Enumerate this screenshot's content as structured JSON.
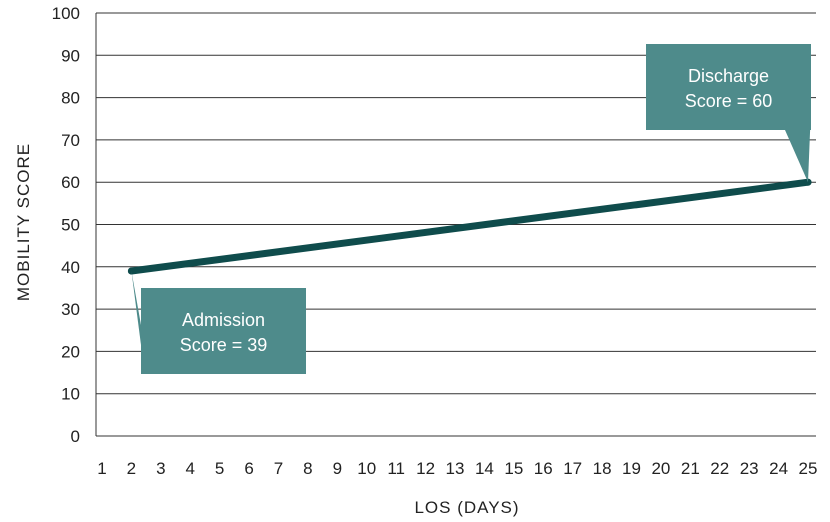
{
  "chart_data": {
    "type": "line",
    "xlabel": "LOS (DAYS)",
    "ylabel": "MOBILITY SCORE",
    "x_ticks": [
      1,
      2,
      3,
      4,
      5,
      6,
      7,
      8,
      9,
      10,
      11,
      12,
      13,
      14,
      15,
      16,
      17,
      18,
      19,
      20,
      21,
      22,
      23,
      24,
      25
    ],
    "y_ticks": [
      0,
      10,
      20,
      30,
      40,
      50,
      60,
      70,
      80,
      90,
      100
    ],
    "ylim": [
      0,
      100
    ],
    "xlim": [
      1,
      25
    ],
    "grid": "horizontal",
    "series": [
      {
        "x": [
          2,
          25
        ],
        "y": [
          39,
          60
        ]
      }
    ],
    "annotations": [
      {
        "lines": [
          "Admission",
          "Score = 39"
        ],
        "x": 2,
        "y": 39
      },
      {
        "lines": [
          "Discharge",
          "Score = 60"
        ],
        "x": 25,
        "y": 60
      }
    ],
    "colors": {
      "line": "#0f4c4c",
      "callout": "#4e8b8b",
      "grid": "#333333"
    }
  }
}
